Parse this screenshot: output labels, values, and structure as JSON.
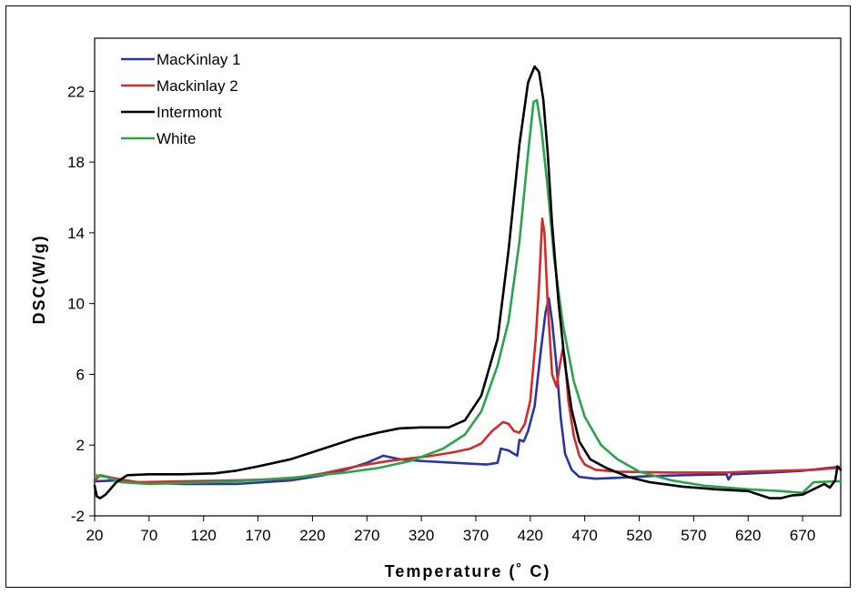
{
  "chart_data": {
    "type": "line",
    "title": "",
    "xlabel": "Temperature (˚ C)",
    "ylabel": "DSC(W/g)",
    "xlim": [
      20,
      705
    ],
    "ylim": [
      -2,
      25
    ],
    "x_ticks": [
      "20",
      "70",
      "120",
      "170",
      "220",
      "270",
      "320",
      "370",
      "420",
      "470",
      "520",
      "570",
      "620",
      "670"
    ],
    "y_ticks": [
      "-2",
      "2",
      "6",
      "10",
      "14",
      "18",
      "22"
    ],
    "grid": false,
    "legend_position": "top-left",
    "series": [
      {
        "name": "MacKinlay 1",
        "color": "#2a36a0",
        "points": [
          [
            20,
            -0.05
          ],
          [
            40,
            0.0
          ],
          [
            60,
            -0.1
          ],
          [
            100,
            -0.2
          ],
          [
            150,
            -0.2
          ],
          [
            200,
            0.0
          ],
          [
            230,
            0.3
          ],
          [
            250,
            0.6
          ],
          [
            270,
            1.0
          ],
          [
            285,
            1.4
          ],
          [
            300,
            1.2
          ],
          [
            320,
            1.1
          ],
          [
            350,
            1.0
          ],
          [
            380,
            0.9
          ],
          [
            390,
            1.0
          ],
          [
            393,
            1.8
          ],
          [
            400,
            1.7
          ],
          [
            405,
            1.5
          ],
          [
            408,
            1.4
          ],
          [
            410,
            2.3
          ],
          [
            414,
            2.2
          ],
          [
            418,
            2.8
          ],
          [
            424,
            4.2
          ],
          [
            430,
            7.5
          ],
          [
            434,
            9.5
          ],
          [
            437,
            10.3
          ],
          [
            440,
            9.0
          ],
          [
            444,
            6.5
          ],
          [
            448,
            3.5
          ],
          [
            452,
            1.5
          ],
          [
            458,
            0.6
          ],
          [
            465,
            0.2
          ],
          [
            480,
            0.1
          ],
          [
            500,
            0.15
          ],
          [
            530,
            0.25
          ],
          [
            560,
            0.3
          ],
          [
            600,
            0.35
          ],
          [
            602,
            0.05
          ],
          [
            605,
            0.35
          ],
          [
            640,
            0.45
          ],
          [
            670,
            0.55
          ],
          [
            700,
            0.75
          ],
          [
            705,
            0.75
          ]
        ]
      },
      {
        "name": "Mackinlay 2",
        "color": "#d42a2a",
        "points": [
          [
            20,
            0.0
          ],
          [
            25,
            0.3
          ],
          [
            40,
            0.1
          ],
          [
            60,
            -0.1
          ],
          [
            100,
            -0.05
          ],
          [
            150,
            0.0
          ],
          [
            200,
            0.1
          ],
          [
            230,
            0.4
          ],
          [
            260,
            0.8
          ],
          [
            290,
            1.1
          ],
          [
            330,
            1.4
          ],
          [
            350,
            1.6
          ],
          [
            365,
            1.8
          ],
          [
            375,
            2.1
          ],
          [
            385,
            2.8
          ],
          [
            395,
            3.3
          ],
          [
            400,
            3.2
          ],
          [
            405,
            2.8
          ],
          [
            410,
            2.7
          ],
          [
            415,
            3.2
          ],
          [
            420,
            4.5
          ],
          [
            425,
            8.0
          ],
          [
            428,
            11.0
          ],
          [
            431,
            14.8
          ],
          [
            433,
            14.0
          ],
          [
            436,
            10.0
          ],
          [
            440,
            6.0
          ],
          [
            444,
            5.3
          ],
          [
            447,
            6.5
          ],
          [
            450,
            7.5
          ],
          [
            452,
            6.8
          ],
          [
            455,
            4.5
          ],
          [
            460,
            2.5
          ],
          [
            465,
            1.4
          ],
          [
            470,
            0.9
          ],
          [
            480,
            0.6
          ],
          [
            500,
            0.5
          ],
          [
            550,
            0.45
          ],
          [
            600,
            0.45
          ],
          [
            620,
            0.5
          ],
          [
            650,
            0.55
          ],
          [
            680,
            0.6
          ],
          [
            700,
            0.7
          ],
          [
            705,
            0.75
          ]
        ]
      },
      {
        "name": "Intermont",
        "color": "#000000",
        "points": [
          [
            20,
            -0.3
          ],
          [
            22,
            -0.9
          ],
          [
            25,
            -1.0
          ],
          [
            30,
            -0.8
          ],
          [
            40,
            -0.1
          ],
          [
            50,
            0.3
          ],
          [
            70,
            0.35
          ],
          [
            100,
            0.35
          ],
          [
            130,
            0.4
          ],
          [
            150,
            0.55
          ],
          [
            170,
            0.8
          ],
          [
            200,
            1.2
          ],
          [
            230,
            1.8
          ],
          [
            260,
            2.4
          ],
          [
            280,
            2.7
          ],
          [
            300,
            2.95
          ],
          [
            320,
            3.0
          ],
          [
            345,
            3.0
          ],
          [
            360,
            3.4
          ],
          [
            375,
            4.8
          ],
          [
            390,
            8.0
          ],
          [
            400,
            13.0
          ],
          [
            410,
            19.0
          ],
          [
            418,
            22.5
          ],
          [
            424,
            23.4
          ],
          [
            428,
            23.1
          ],
          [
            432,
            21.5
          ],
          [
            436,
            18.5
          ],
          [
            440,
            14.5
          ],
          [
            446,
            10.0
          ],
          [
            452,
            6.5
          ],
          [
            458,
            4.0
          ],
          [
            465,
            2.2
          ],
          [
            475,
            1.2
          ],
          [
            490,
            0.7
          ],
          [
            510,
            0.2
          ],
          [
            530,
            -0.1
          ],
          [
            560,
            -0.35
          ],
          [
            590,
            -0.5
          ],
          [
            620,
            -0.6
          ],
          [
            640,
            -1.0
          ],
          [
            650,
            -1.0
          ],
          [
            660,
            -0.85
          ],
          [
            670,
            -0.8
          ],
          [
            680,
            -0.5
          ],
          [
            690,
            -0.2
          ],
          [
            695,
            -0.4
          ],
          [
            700,
            0.0
          ],
          [
            702,
            0.8
          ],
          [
            705,
            0.6
          ]
        ]
      },
      {
        "name": "White",
        "color": "#2aa44a",
        "points": [
          [
            20,
            0.3
          ],
          [
            30,
            0.2
          ],
          [
            45,
            -0.1
          ],
          [
            70,
            -0.2
          ],
          [
            100,
            -0.15
          ],
          [
            150,
            -0.05
          ],
          [
            200,
            0.15
          ],
          [
            250,
            0.45
          ],
          [
            280,
            0.7
          ],
          [
            310,
            1.1
          ],
          [
            340,
            1.8
          ],
          [
            360,
            2.6
          ],
          [
            375,
            3.9
          ],
          [
            390,
            6.5
          ],
          [
            400,
            9.0
          ],
          [
            410,
            13.5
          ],
          [
            418,
            18.5
          ],
          [
            423,
            21.4
          ],
          [
            426,
            21.5
          ],
          [
            430,
            20.0
          ],
          [
            436,
            16.5
          ],
          [
            442,
            12.5
          ],
          [
            450,
            8.8
          ],
          [
            460,
            5.6
          ],
          [
            470,
            3.6
          ],
          [
            485,
            2.0
          ],
          [
            500,
            1.2
          ],
          [
            520,
            0.5
          ],
          [
            550,
            0.0
          ],
          [
            580,
            -0.3
          ],
          [
            620,
            -0.5
          ],
          [
            650,
            -0.6
          ],
          [
            670,
            -0.7
          ],
          [
            680,
            -0.1
          ],
          [
            700,
            -0.05
          ],
          [
            705,
            -0.05
          ]
        ]
      }
    ]
  }
}
